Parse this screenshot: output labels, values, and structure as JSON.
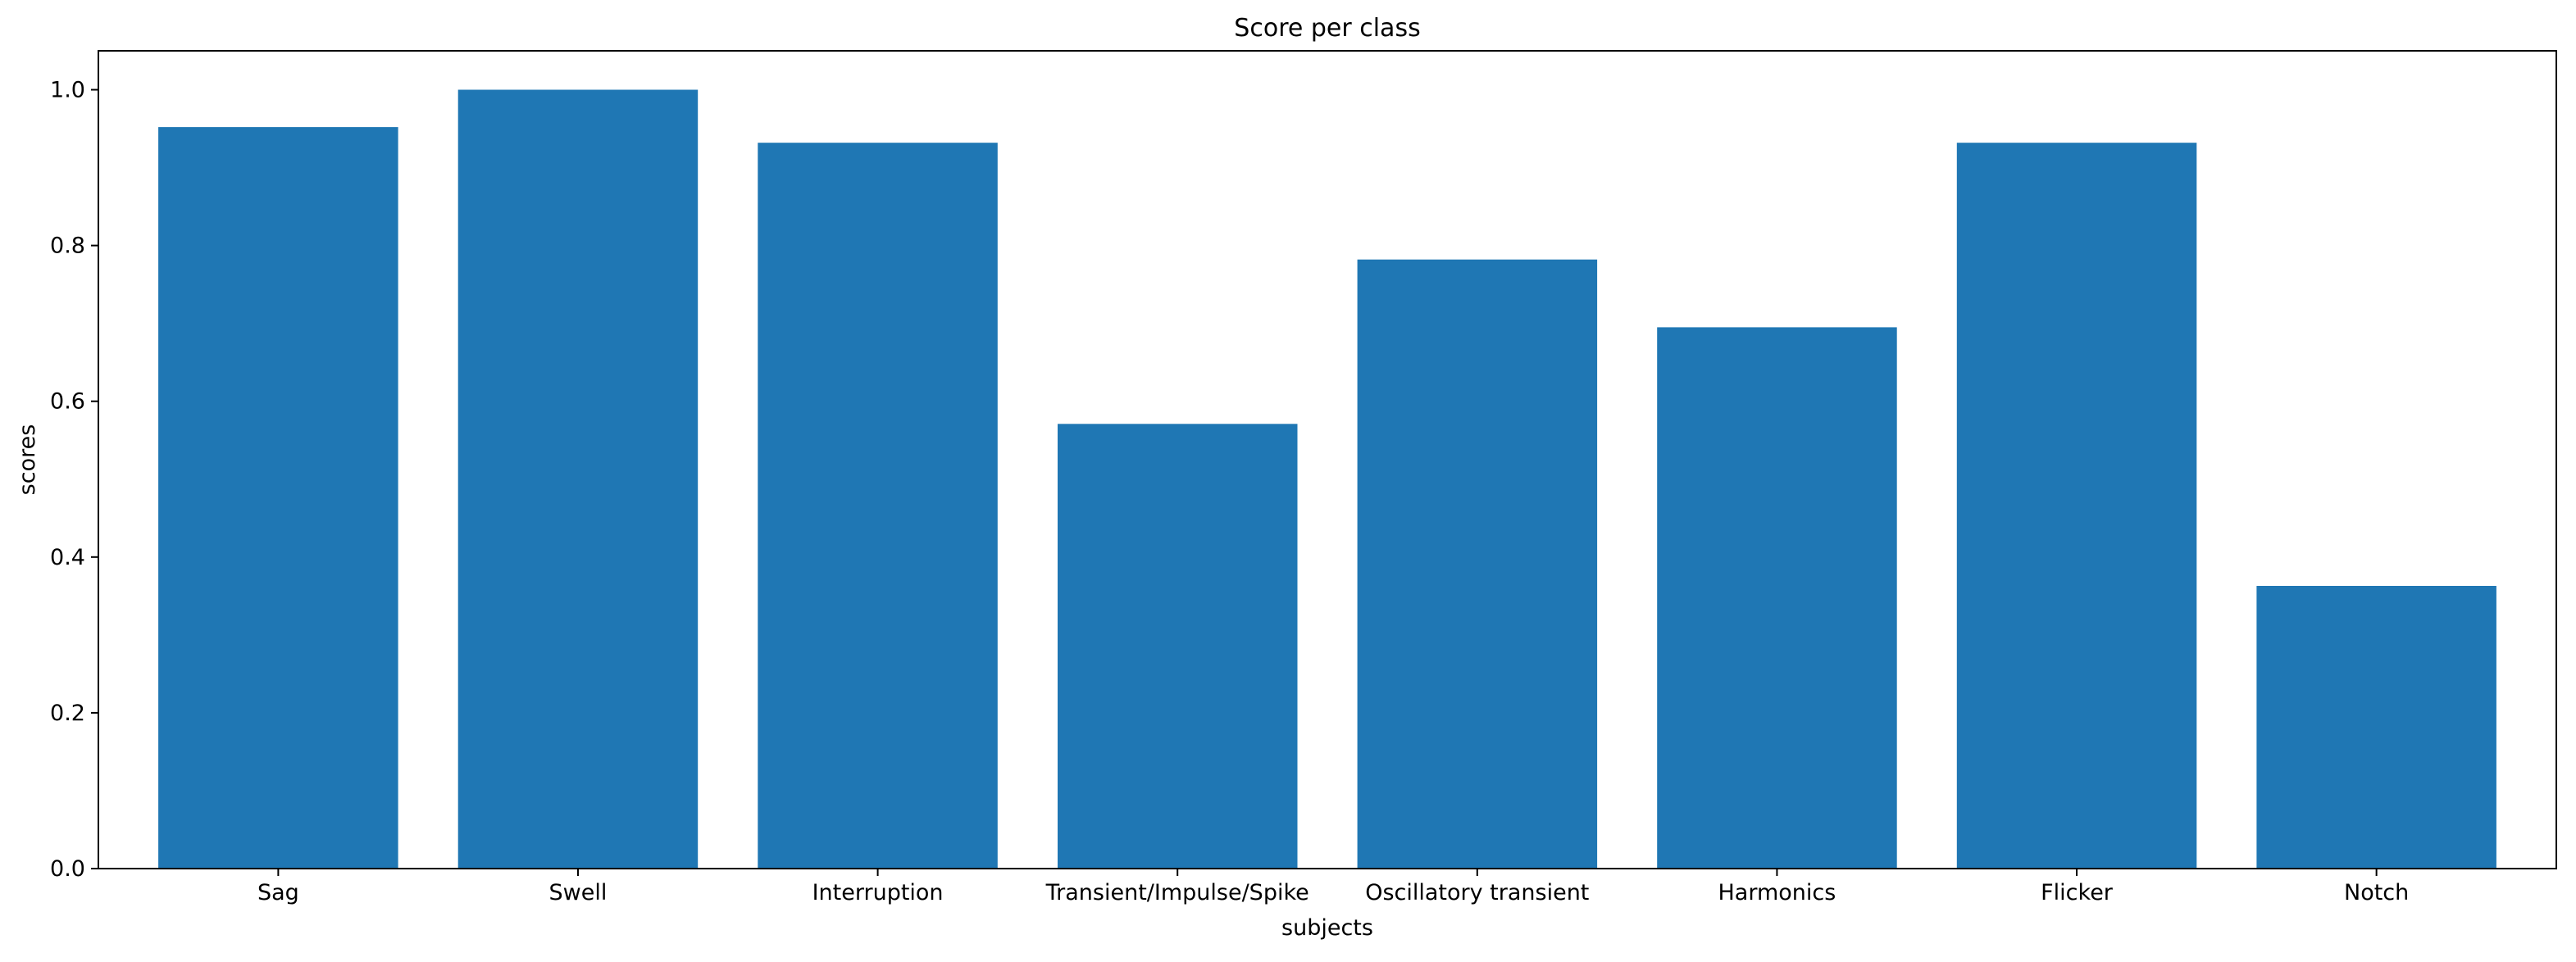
{
  "chart_data": {
    "type": "bar",
    "title": "Score per class",
    "xlabel": "subjects",
    "ylabel": "scores",
    "categories": [
      "Sag",
      "Swell",
      "Interruption",
      "Transient/Impulse/Spike",
      "Oscillatory transient",
      "Harmonics",
      "Flicker",
      "Notch"
    ],
    "values": [
      0.952,
      1.0,
      0.932,
      0.571,
      0.782,
      0.695,
      0.932,
      0.363
    ],
    "ylim": [
      0,
      1.05
    ],
    "yticks": [
      "0.0",
      "0.2",
      "0.4",
      "0.6",
      "0.8",
      "1.0"
    ],
    "bar_color": "#1f77b4",
    "grid": false,
    "legend": "none"
  }
}
